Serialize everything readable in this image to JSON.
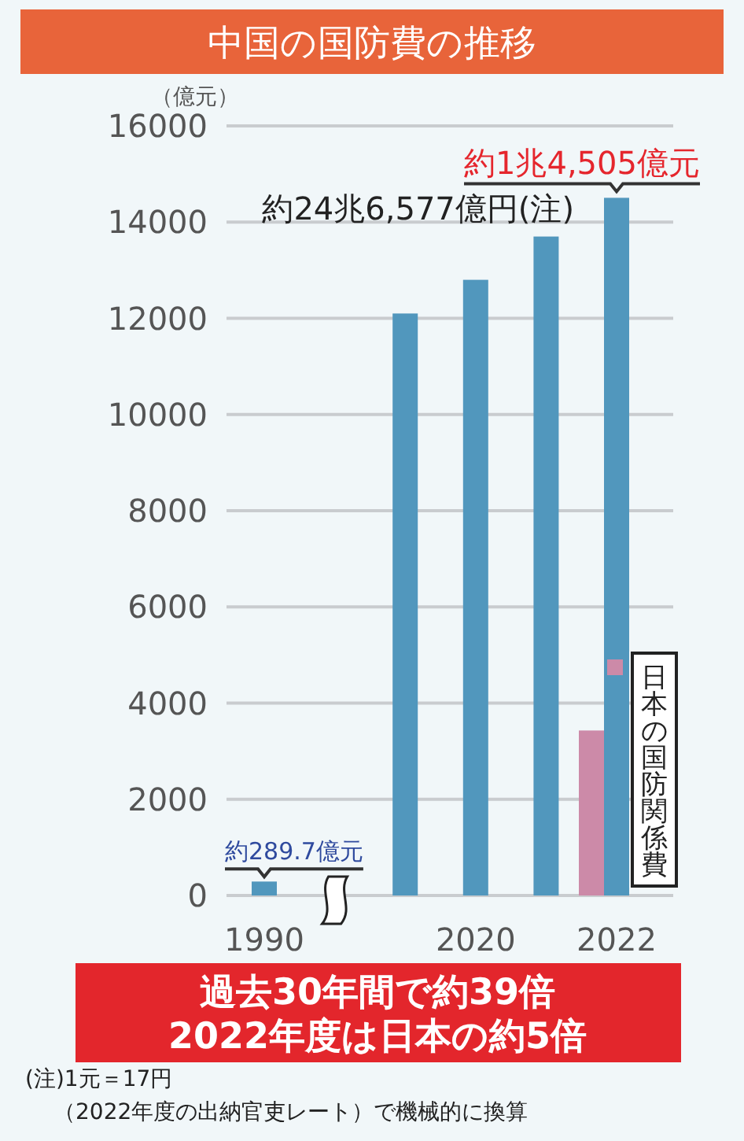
{
  "chart_data": {
    "type": "bar",
    "title": "中国の国防費の推移",
    "ylabel": "（億元）",
    "categories": [
      "1990",
      null,
      null,
      "2020",
      null,
      "2022"
    ],
    "series": [
      {
        "color": "#5197bd",
        "values": [
          289.7,
          null,
          12100,
          12800,
          13700,
          14505
        ],
        "value_labels": [
          "約289.7億元",
          null,
          null,
          null,
          null,
          "約1兆4,505億元"
        ]
      },
      {
        "name": "日本の国防関係費",
        "color": "#cc8aa8",
        "values": [
          null,
          null,
          null,
          null,
          null,
          3430
        ]
      }
    ],
    "ylim": [
      0,
      16000
    ],
    "yticks": [
      0,
      2000,
      4000,
      6000,
      8000,
      10000,
      12000,
      14000,
      16000
    ],
    "grid": "y",
    "annotations": [
      {
        "text": "約24兆6,577億円(注)",
        "x": "2022",
        "y": 14505
      },
      "過去30年間で約39倍\n2022年度は日本の約5倍",
      "(注)1元＝17円",
      "（2022年度の出納官吏レート）で機械的に換算"
    ]
  }
}
